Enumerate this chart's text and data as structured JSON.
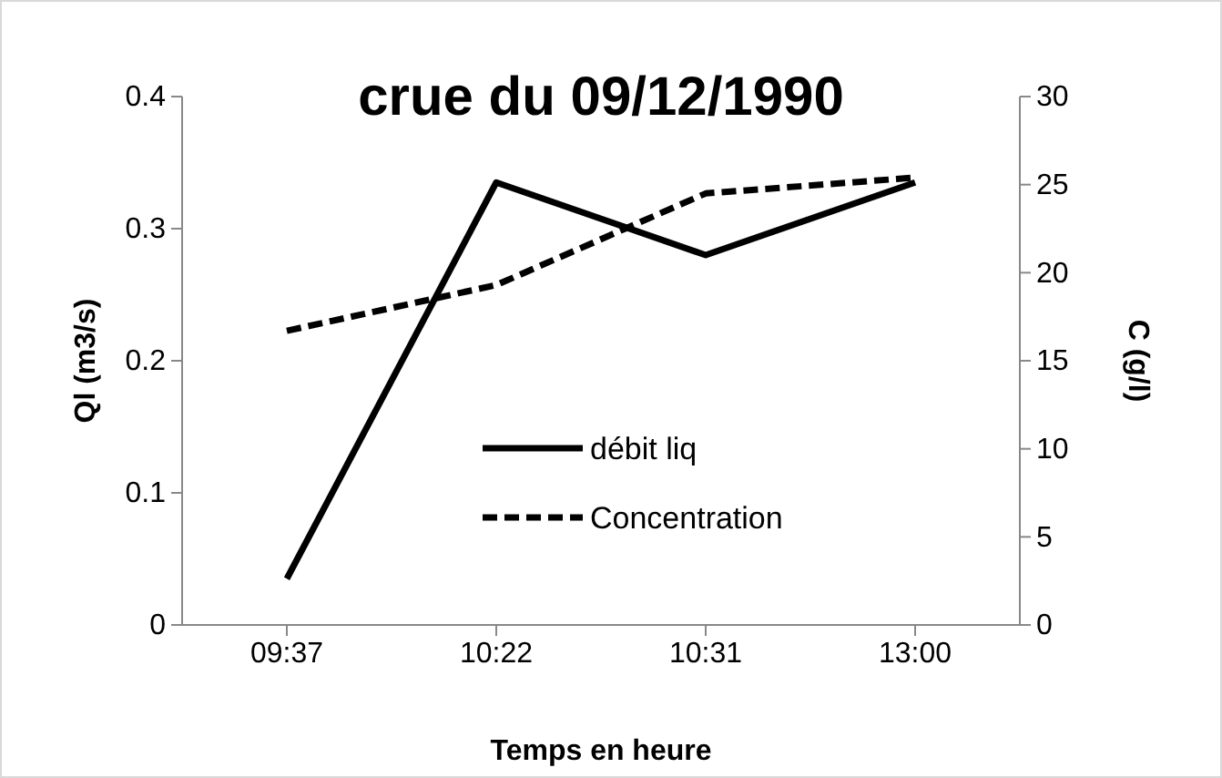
{
  "chart_data": {
    "type": "line",
    "title": "crue du 09/12/1990",
    "xlabel": "Temps en heure",
    "ylabel": "Ql (m3/s)",
    "y2label": "C (g/l)",
    "categories": [
      "09:37",
      "10:22",
      "10:31",
      "13:00"
    ],
    "series": [
      {
        "name": "débit liq",
        "color": "#000000",
        "line_style": "solid",
        "values": [
          0.035,
          0.335,
          0.28,
          0.335
        ]
      },
      {
        "name": "Concentration",
        "color": "#000000",
        "line_style": "dashed",
        "axis": "y2",
        "values": [
          16.7,
          19.3,
          24.5,
          25.4
        ]
      }
    ],
    "ylim": [
      0,
      0.4
    ],
    "yticks": [
      0,
      0.1,
      0.2,
      0.3,
      0.4
    ],
    "y2lim": [
      0,
      30
    ],
    "y2ticks": [
      0,
      5,
      10,
      15,
      20,
      25,
      30
    ],
    "grid": false,
    "legend": "center"
  }
}
